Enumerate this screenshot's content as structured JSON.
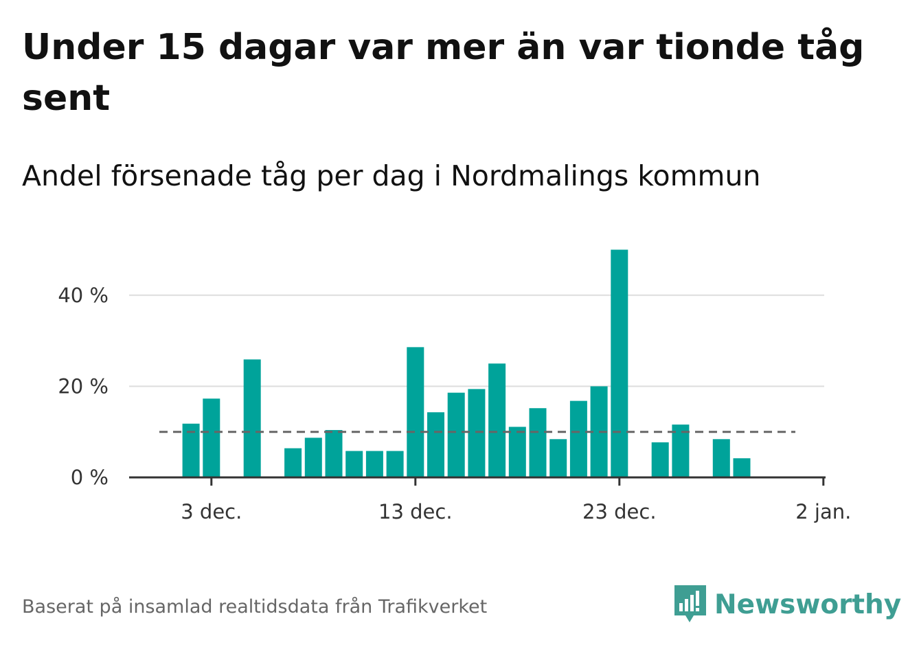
{
  "header": {
    "title": "Under 15 dagar var mer än var tionde tåg sent",
    "subtitle": "Andel försenade tåg per dag i Nordmalings kommun"
  },
  "footer": {
    "source": "Baserat på insamlad realtidsdata från Trafikverket",
    "brand": "Newsworthy"
  },
  "colors": {
    "bar": "#00a39a",
    "reference_line": "#666666",
    "grid": "#dddddd",
    "axis": "#333333",
    "brand": "#3f9e93"
  },
  "chart_data": {
    "type": "bar",
    "categories": [
      "29 nov.",
      "30 nov.",
      "1 dec.",
      "2 dec.",
      "3 dec.",
      "4 dec.",
      "5 dec.",
      "6 dec.",
      "7 dec.",
      "8 dec.",
      "9 dec.",
      "10 dec.",
      "11 dec.",
      "12 dec.",
      "13 dec.",
      "14 dec.",
      "15 dec.",
      "16 dec.",
      "17 dec.",
      "18 dec.",
      "19 dec.",
      "20 dec.",
      "21 dec.",
      "22 dec.",
      "23 dec.",
      "24 dec.",
      "25 dec.",
      "26 dec.",
      "27 dec.",
      "28 dec.",
      "29 dec.",
      "30 dec.",
      "31 dec.",
      "1 jan."
    ],
    "values": [
      null,
      null,
      null,
      11.8,
      17.3,
      null,
      25.9,
      null,
      6.4,
      8.7,
      10.4,
      5.8,
      5.8,
      5.8,
      28.6,
      14.3,
      18.6,
      19.4,
      25.0,
      11.1,
      15.2,
      8.4,
      16.8,
      20.0,
      50.0,
      null,
      7.7,
      11.6,
      null,
      8.4,
      4.2,
      null,
      null,
      null
    ],
    "reference_line": 10,
    "x_ticks": [
      "3 dec.",
      "13 dec.",
      "23 dec.",
      "2 jan."
    ],
    "x_tick_dates": [
      "3 dec.",
      "13 dec.",
      "23 dec.",
      "2 jan."
    ],
    "y_ticks": [
      "0 %",
      "20 %",
      "40 %"
    ],
    "y_tick_values": [
      0,
      20,
      40
    ],
    "ylim": [
      0,
      52
    ],
    "xlim": [
      "29 nov.",
      "2 jan."
    ],
    "grid": true,
    "legend": "none"
  }
}
